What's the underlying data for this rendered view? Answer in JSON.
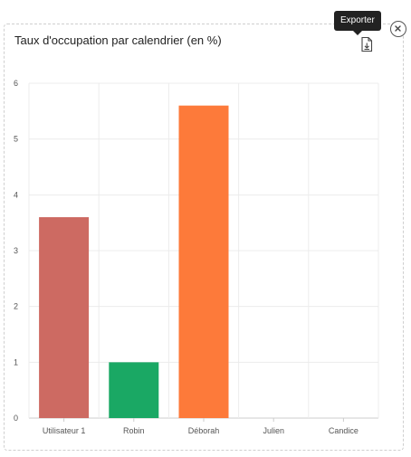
{
  "widget": {
    "title": "Taux d'occupation par calendrier (en %)",
    "export_tooltip": "Exporter",
    "export_icon": "file-export-icon",
    "close_icon": "close-circle-icon"
  },
  "chart_data": {
    "type": "bar",
    "categories": [
      "Utilisateur 1",
      "Robin",
      "Déborah",
      "Julien",
      "Candice"
    ],
    "values": [
      3.6,
      1,
      5.6,
      0,
      0
    ],
    "colors": [
      "#cd6a62",
      "#1aa864",
      "#fd7a3a",
      "#cccccc",
      "#cccccc"
    ],
    "ylim": [
      0,
      6
    ],
    "yticks": [
      0,
      1,
      2,
      3,
      4,
      5,
      6
    ],
    "grid": true,
    "legend": "none"
  }
}
